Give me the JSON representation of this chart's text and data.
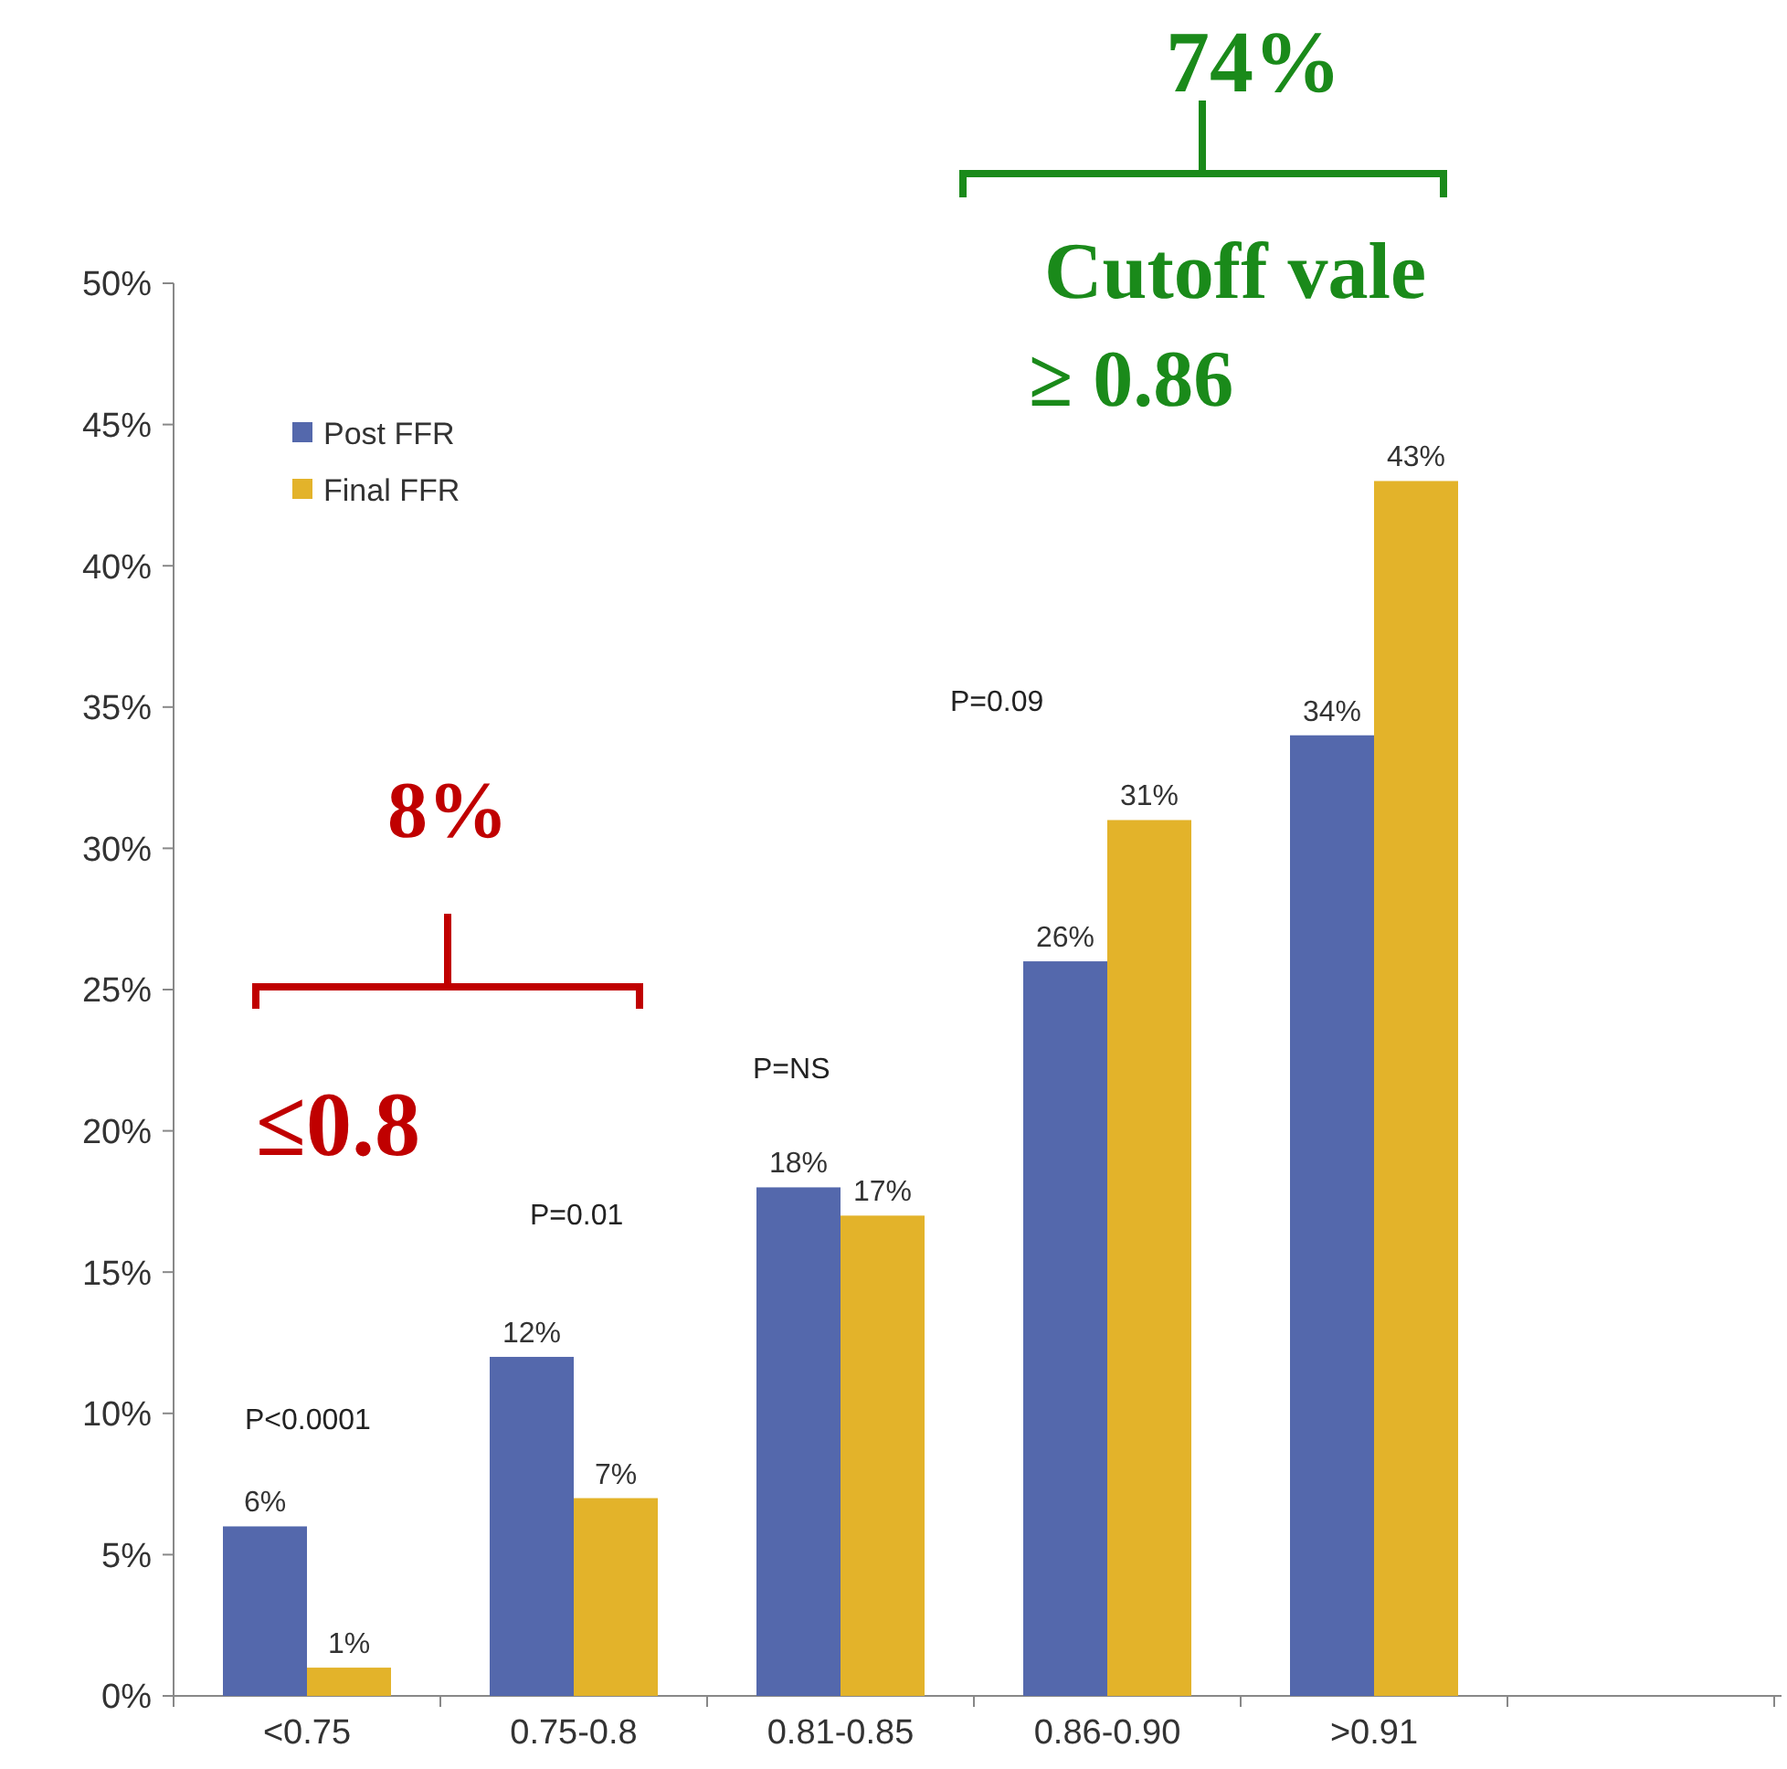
{
  "chart_data": {
    "type": "bar",
    "categories": [
      "<0.75",
      "0.75-0.8",
      "0.81-0.85",
      "0.86-0.90",
      ">0.91",
      null
    ],
    "series": [
      {
        "name": "Post FFR",
        "color": "#5468ac",
        "values": [
          6,
          12,
          18,
          26,
          34,
          null
        ],
        "value_labels": [
          "6%",
          "12%",
          "18%",
          "26%",
          "34%",
          null
        ]
      },
      {
        "name": "Final FFR",
        "color": "#e3b32a",
        "values": [
          1,
          7,
          17,
          31,
          43,
          null
        ],
        "value_labels": [
          "1%",
          "7%",
          "17%",
          "31%",
          "43%",
          null
        ]
      }
    ],
    "ylim": [
      0,
      50
    ],
    "yticks": [
      {
        "value": 0,
        "label": "0%"
      },
      {
        "value": 5,
        "label": "5%"
      },
      {
        "value": 10,
        "label": "10%"
      },
      {
        "value": 15,
        "label": "15%"
      },
      {
        "value": 20,
        "label": "20%"
      },
      {
        "value": 25,
        "label": "25%"
      },
      {
        "value": 30,
        "label": "30%"
      },
      {
        "value": 35,
        "label": "35%"
      },
      {
        "value": 40,
        "label": "40%"
      },
      {
        "value": 45,
        "label": "45%"
      },
      {
        "value": 50,
        "label": "50%"
      }
    ],
    "legend": "top left",
    "annotations": [
      "P<0.0001",
      "P=0.01",
      "P=NS",
      "P=0.09",
      "8%",
      "≤0.8",
      "74%",
      "Cutoff vale",
      "≥ 0.86"
    ]
  }
}
